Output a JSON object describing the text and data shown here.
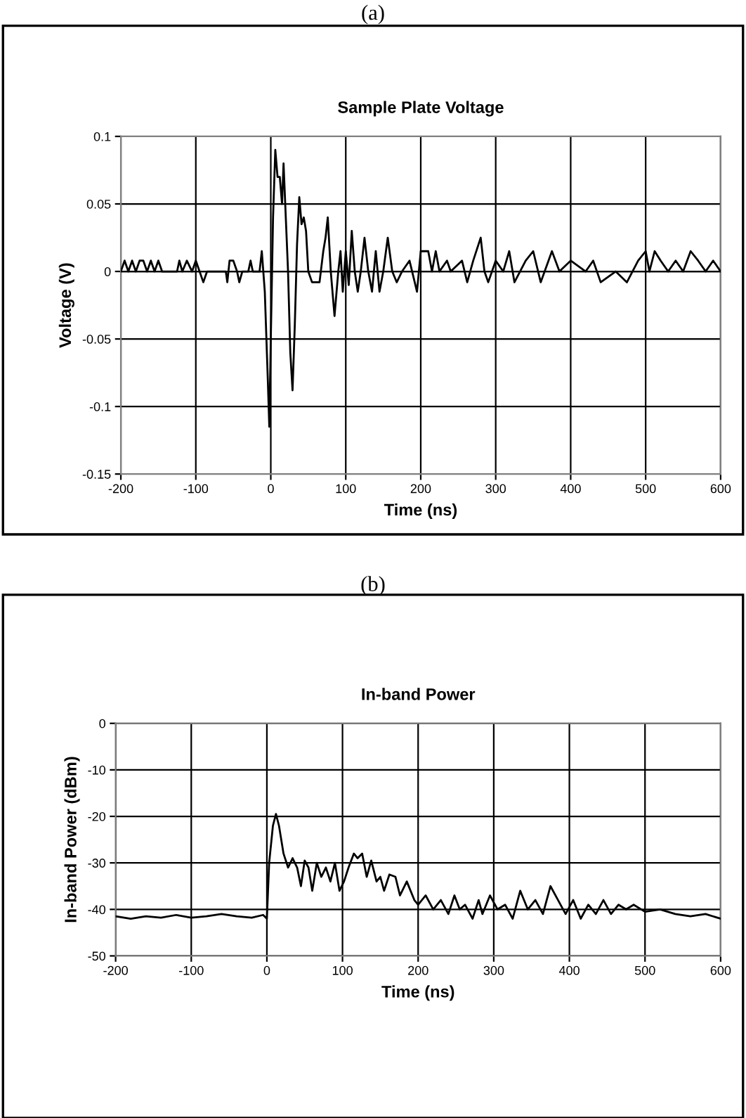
{
  "chart_data": [
    {
      "type": "line",
      "title": "Sample Plate Voltage",
      "xlabel": "Time (ns)",
      "ylabel": "Voltage (V)",
      "annotations": [
        "(a)"
      ],
      "xlim": [
        -200,
        600
      ],
      "ylim": [
        -0.15,
        0.1
      ],
      "xticks": [
        -200,
        -100,
        0,
        100,
        200,
        300,
        400,
        500,
        600
      ],
      "yticks": [
        -0.15,
        -0.1,
        -0.05,
        0,
        0.05,
        0.1
      ],
      "grid": true,
      "legend": false,
      "line_style": "solid",
      "marker": "none",
      "series": [
        {
          "color": "#000000",
          "x": [
            -200,
            -195,
            -190,
            -185,
            -180,
            -175,
            -170,
            -165,
            -160,
            -155,
            -150,
            -145,
            -140,
            -125,
            -122,
            -118,
            -112,
            -105,
            -100,
            -95,
            -90,
            -85,
            -60,
            -58,
            -55,
            -50,
            -45,
            -42,
            -38,
            -30,
            -27,
            -24,
            -15,
            -12,
            -8,
            -4,
            -2,
            0,
            3,
            6,
            9,
            12,
            15,
            17,
            20,
            23,
            26,
            29,
            32,
            35,
            38,
            41,
            44,
            47,
            50,
            55,
            65,
            70,
            73,
            76,
            80,
            85,
            90,
            93,
            96,
            100,
            104,
            108,
            112,
            116,
            120,
            125,
            130,
            135,
            140,
            145,
            150,
            156,
            162,
            168,
            175,
            185,
            195,
            200,
            210,
            215,
            220,
            225,
            235,
            240,
            255,
            262,
            270,
            280,
            285,
            290,
            300,
            310,
            318,
            325,
            340,
            350,
            360,
            375,
            385,
            400,
            420,
            430,
            440,
            460,
            475,
            490,
            500,
            505,
            512,
            520,
            530,
            540,
            550,
            560,
            570,
            580,
            590,
            600
          ],
          "values": [
            0,
            0.008,
            0,
            0.008,
            0,
            0.008,
            0.008,
            0,
            0.008,
            0,
            0.008,
            0,
            0,
            0,
            0.008,
            0,
            0.008,
            0,
            0.008,
            0,
            -0.008,
            0,
            0,
            -0.008,
            0.008,
            0.008,
            0,
            -0.008,
            0,
            0,
            0.008,
            0,
            0,
            0.015,
            -0.015,
            -0.08,
            -0.115,
            -0.05,
            0.04,
            0.09,
            0.07,
            0.07,
            0.05,
            0.08,
            0.04,
            0,
            -0.06,
            -0.088,
            -0.04,
            0.02,
            0.055,
            0.035,
            0.04,
            0.03,
            0,
            -0.008,
            -0.008,
            0.015,
            0.025,
            0.04,
            0,
            -0.033,
            0,
            0.015,
            -0.015,
            0.015,
            -0.01,
            0.03,
            0,
            -0.015,
            0,
            0.025,
            0,
            -0.015,
            0.015,
            -0.015,
            0,
            0.025,
            0,
            -0.008,
            0,
            0.008,
            -0.015,
            0.015,
            0.015,
            0,
            0.015,
            0,
            0.008,
            0,
            0.008,
            -0.008,
            0.008,
            0.025,
            0,
            -0.008,
            0.008,
            0,
            0.015,
            -0.008,
            0.008,
            0.015,
            -0.008,
            0.015,
            0,
            0.008,
            0,
            0.008,
            -0.008,
            0,
            -0.008,
            0.008,
            0.015,
            0,
            0.015,
            0.008,
            0,
            0.008,
            0,
            0.015,
            0.008,
            0,
            0.008,
            0
          ]
        }
      ]
    },
    {
      "type": "line",
      "title": "In-band Power",
      "xlabel": "Time (ns)",
      "ylabel": "In-band Power (dBm)",
      "annotations": [
        "(b)"
      ],
      "xlim": [
        -200,
        600
      ],
      "ylim": [
        -50,
        0
      ],
      "xticks": [
        -200,
        -100,
        0,
        100,
        200,
        300,
        400,
        500,
        600
      ],
      "yticks": [
        -50,
        -40,
        -30,
        -20,
        -10,
        0
      ],
      "grid": true,
      "legend": false,
      "line_style": "solid",
      "marker": "none",
      "series": [
        {
          "color": "#000000",
          "x": [
            -200,
            -180,
            -160,
            -140,
            -120,
            -100,
            -80,
            -60,
            -40,
            -20,
            -5,
            0,
            3,
            8,
            12,
            16,
            22,
            28,
            34,
            40,
            45,
            50,
            55,
            60,
            66,
            72,
            78,
            84,
            90,
            96,
            102,
            108,
            115,
            120,
            126,
            132,
            138,
            145,
            150,
            155,
            162,
            170,
            176,
            185,
            195,
            200,
            210,
            220,
            230,
            240,
            248,
            255,
            262,
            272,
            280,
            285,
            295,
            305,
            315,
            325,
            335,
            345,
            355,
            365,
            375,
            385,
            395,
            405,
            415,
            425,
            435,
            445,
            455,
            465,
            475,
            485,
            500,
            520,
            540,
            560,
            580,
            600
          ],
          "values": [
            -41.5,
            -42,
            -41.5,
            -41.8,
            -41.2,
            -41.8,
            -41.5,
            -41,
            -41.5,
            -41.8,
            -41.2,
            -42,
            -30,
            -22,
            -19.5,
            -22,
            -28,
            -31,
            -29,
            -31,
            -35,
            -29.5,
            -31,
            -36,
            -30,
            -33,
            -31,
            -34,
            -30,
            -36,
            -34,
            -31,
            -28,
            -29,
            -28,
            -33,
            -29.5,
            -34,
            -33,
            -36,
            -32.5,
            -33,
            -37,
            -34,
            -38,
            -39,
            -37,
            -40,
            -38,
            -41,
            -37,
            -40,
            -39,
            -42,
            -38,
            -41,
            -37,
            -40,
            -39,
            -42,
            -36,
            -40,
            -38,
            -41,
            -35,
            -38,
            -41,
            -38,
            -42,
            -39,
            -41,
            -38,
            -41,
            -39,
            -40,
            -39,
            -40.5,
            -40,
            -41,
            -41.5,
            -41,
            -42
          ]
        }
      ]
    }
  ]
}
